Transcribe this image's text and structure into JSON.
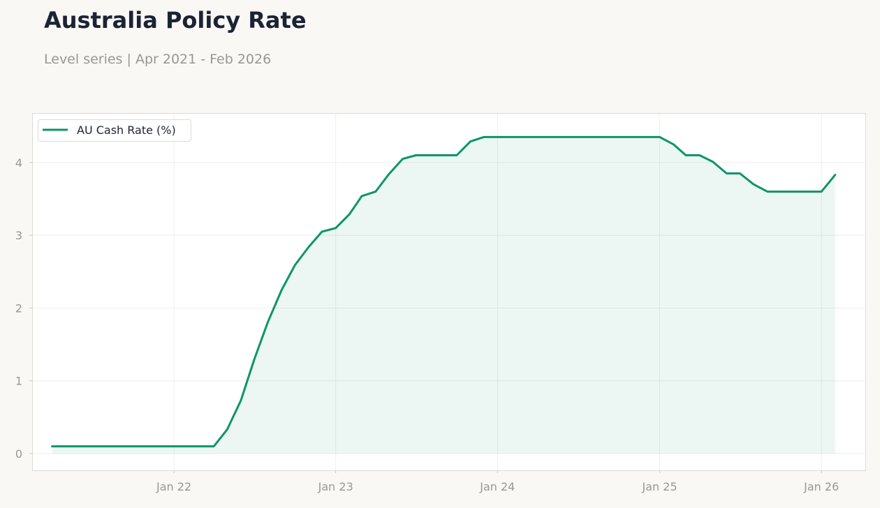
{
  "chart_data": {
    "type": "area",
    "title": "Australia Policy Rate",
    "subtitle": "Level series | Apr 2021 - Feb 2026",
    "xlabel": "",
    "ylabel": "",
    "x_range": [
      "2021-02-15",
      "2026-04-10"
    ],
    "ylim": [
      -0.23,
      4.68
    ],
    "grid": true,
    "legend_position": "top-left",
    "x_ticks": [
      {
        "date": "2022-01-01",
        "label": "Jan 22"
      },
      {
        "date": "2023-01-01",
        "label": "Jan 23"
      },
      {
        "date": "2024-01-01",
        "label": "Jan 24"
      },
      {
        "date": "2025-01-01",
        "label": "Jan 25"
      },
      {
        "date": "2026-01-01",
        "label": "Jan 26"
      }
    ],
    "y_ticks": [
      0,
      1,
      2,
      3,
      4
    ],
    "series": [
      {
        "name": "AU Cash Rate (%)",
        "color": "#0e946a",
        "points": [
          [
            "2021-04-01",
            0.1
          ],
          [
            "2021-05-01",
            0.1
          ],
          [
            "2021-06-01",
            0.1
          ],
          [
            "2021-07-01",
            0.1
          ],
          [
            "2021-08-01",
            0.1
          ],
          [
            "2021-09-01",
            0.1
          ],
          [
            "2021-10-01",
            0.1
          ],
          [
            "2021-11-01",
            0.1
          ],
          [
            "2021-12-01",
            0.1
          ],
          [
            "2022-01-01",
            0.1
          ],
          [
            "2022-02-01",
            0.1
          ],
          [
            "2022-03-01",
            0.1
          ],
          [
            "2022-04-01",
            0.1
          ],
          [
            "2022-05-01",
            0.33
          ],
          [
            "2022-06-01",
            0.73
          ],
          [
            "2022-07-01",
            1.29
          ],
          [
            "2022-08-01",
            1.81
          ],
          [
            "2022-09-01",
            2.25
          ],
          [
            "2022-10-01",
            2.59
          ],
          [
            "2022-11-01",
            2.84
          ],
          [
            "2022-12-01",
            3.05
          ],
          [
            "2023-01-01",
            3.1
          ],
          [
            "2023-02-01",
            3.29
          ],
          [
            "2023-03-01",
            3.54
          ],
          [
            "2023-04-01",
            3.6
          ],
          [
            "2023-05-01",
            3.84
          ],
          [
            "2023-06-01",
            4.05
          ],
          [
            "2023-07-01",
            4.1
          ],
          [
            "2023-08-01",
            4.1
          ],
          [
            "2023-09-01",
            4.1
          ],
          [
            "2023-10-01",
            4.1
          ],
          [
            "2023-11-01",
            4.29
          ],
          [
            "2023-12-01",
            4.35
          ],
          [
            "2024-01-01",
            4.35
          ],
          [
            "2024-02-01",
            4.35
          ],
          [
            "2024-03-01",
            4.35
          ],
          [
            "2024-04-01",
            4.35
          ],
          [
            "2024-05-01",
            4.35
          ],
          [
            "2024-06-01",
            4.35
          ],
          [
            "2024-07-01",
            4.35
          ],
          [
            "2024-08-01",
            4.35
          ],
          [
            "2024-09-01",
            4.35
          ],
          [
            "2024-10-01",
            4.35
          ],
          [
            "2024-11-01",
            4.35
          ],
          [
            "2024-12-01",
            4.35
          ],
          [
            "2025-01-01",
            4.35
          ],
          [
            "2025-02-01",
            4.25
          ],
          [
            "2025-03-01",
            4.1
          ],
          [
            "2025-04-01",
            4.1
          ],
          [
            "2025-05-01",
            4.01
          ],
          [
            "2025-06-01",
            3.85
          ],
          [
            "2025-07-01",
            3.85
          ],
          [
            "2025-08-01",
            3.7
          ],
          [
            "2025-09-01",
            3.6
          ],
          [
            "2025-10-01",
            3.6
          ],
          [
            "2025-11-01",
            3.6
          ],
          [
            "2025-12-01",
            3.6
          ],
          [
            "2026-01-01",
            3.6
          ],
          [
            "2026-02-01",
            3.83
          ]
        ]
      }
    ]
  }
}
